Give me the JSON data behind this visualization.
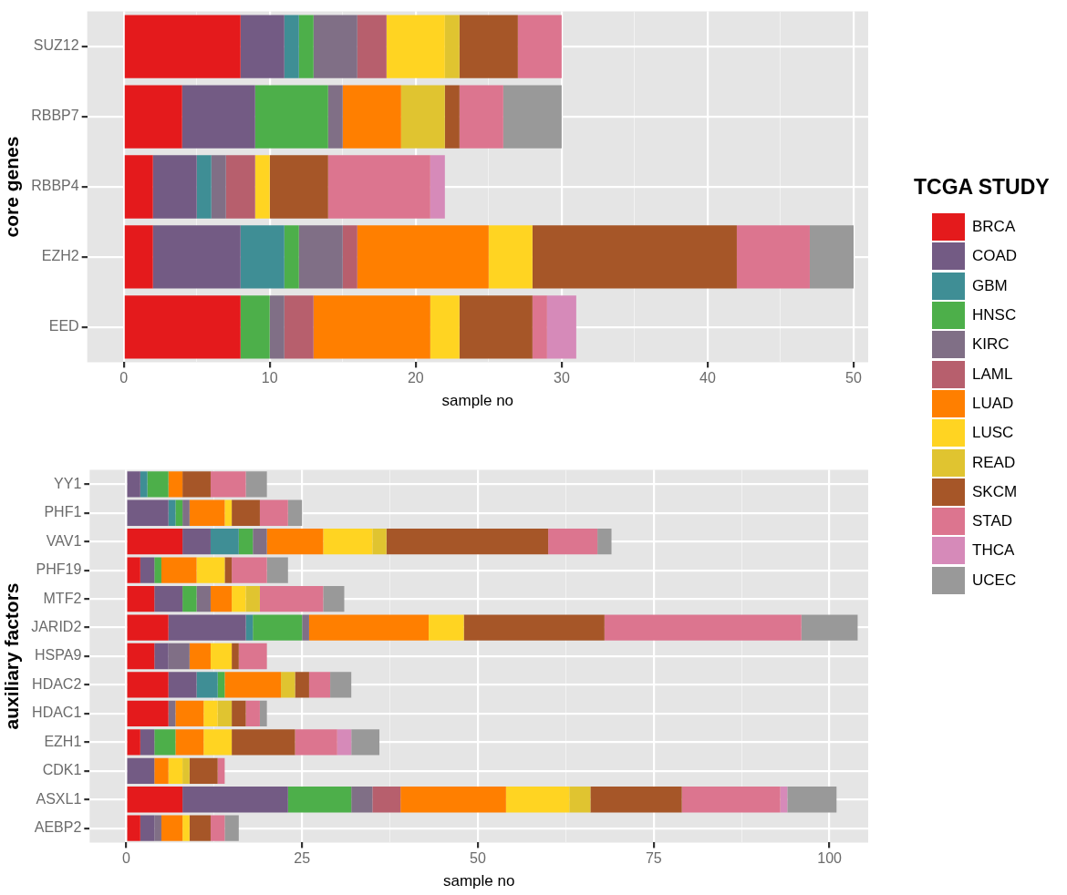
{
  "chart_data": [
    {
      "type": "bar",
      "orientation": "horizontal",
      "stacked": true,
      "ylabel": "core genes",
      "xlabel": "sample no",
      "legend_title": "TCGA STUDY",
      "legend": "right",
      "grid": true,
      "categories": [
        "SUZ12",
        "RBBP7",
        "RBBP4",
        "EZH2",
        "EED"
      ],
      "xlim": [
        -2.5,
        51
      ],
      "xticks": [
        0,
        {
          "value": 5,
          "label": null
        },
        10,
        {
          "value": 15,
          "label": null
        },
        20,
        {
          "value": 25,
          "label": null
        },
        30,
        {
          "value": 35,
          "label": null
        },
        40,
        {
          "value": 45,
          "label": null
        },
        50
      ],
      "series": [
        {
          "name": "BRCA",
          "color": "#e41a1c",
          "values": [
            8,
            4,
            2,
            2,
            8
          ]
        },
        {
          "name": "COAD",
          "color": "#735b84",
          "values": [
            3,
            5,
            3,
            6,
            0
          ]
        },
        {
          "name": "GBM",
          "color": "#3f8e95",
          "values": [
            1,
            0,
            1,
            3,
            0
          ]
        },
        {
          "name": "HNSC",
          "color": "#4daf4a",
          "values": [
            1,
            5,
            0,
            1,
            2
          ]
        },
        {
          "name": "KIRC",
          "color": "#806f86",
          "values": [
            3,
            1,
            1,
            3,
            1
          ]
        },
        {
          "name": "LAML",
          "color": "#b75f6d",
          "values": [
            2,
            0,
            2,
            1,
            2
          ]
        },
        {
          "name": "LUAD",
          "color": "#ff7f00",
          "values": [
            0,
            4,
            0,
            9,
            8
          ]
        },
        {
          "name": "LUSC",
          "color": "#ffd422",
          "values": [
            4,
            0,
            1,
            3,
            2
          ]
        },
        {
          "name": "READ",
          "color": "#e0c430",
          "values": [
            1,
            3,
            0,
            0,
            0
          ]
        },
        {
          "name": "SKCM",
          "color": "#a65628",
          "values": [
            4,
            1,
            4,
            14,
            5
          ]
        },
        {
          "name": "STAD",
          "color": "#dc758f",
          "values": [
            3,
            3,
            7,
            5,
            1
          ]
        },
        {
          "name": "THCA",
          "color": "#d68ab9",
          "values": [
            0,
            0,
            1,
            0,
            2
          ]
        },
        {
          "name": "UCEC",
          "color": "#999999",
          "values": [
            0,
            4,
            0,
            3,
            0
          ]
        }
      ]
    },
    {
      "type": "bar",
      "orientation": "horizontal",
      "stacked": true,
      "ylabel": "auxiliary factors",
      "xlabel": "sample no",
      "legend": "right",
      "grid": true,
      "categories": [
        "YY1",
        "PHF1",
        "VAV1",
        "PHF19",
        "MTF2",
        "JARID2",
        "HSPA9",
        "HDAC2",
        "HDAC1",
        "EZH1",
        "CDK1",
        "ASXL1",
        "AEBP2"
      ],
      "xlim": [
        -5.2,
        105.5
      ],
      "xticks": [
        0,
        {
          "value": 12.5,
          "label": null
        },
        25,
        {
          "value": 37.5,
          "label": null
        },
        50,
        {
          "value": 62.5,
          "label": null
        },
        75,
        {
          "value": 87.5,
          "label": null
        },
        100
      ],
      "series": [
        {
          "name": "BRCA",
          "color": "#e41a1c",
          "values": [
            0,
            0,
            8,
            2,
            4,
            6,
            4,
            6,
            6,
            2,
            0,
            8,
            2
          ]
        },
        {
          "name": "COAD",
          "color": "#735b84",
          "values": [
            2,
            6,
            4,
            2,
            4,
            11,
            2,
            4,
            0,
            2,
            4,
            15,
            2
          ]
        },
        {
          "name": "GBM",
          "color": "#3f8e95",
          "values": [
            1,
            1,
            4,
            0,
            0,
            1,
            0,
            3,
            0,
            0,
            0,
            0,
            0
          ]
        },
        {
          "name": "HNSC",
          "color": "#4daf4a",
          "values": [
            3,
            1,
            2,
            1,
            2,
            7,
            0,
            1,
            0,
            3,
            0,
            9,
            0
          ]
        },
        {
          "name": "KIRC",
          "color": "#806f86",
          "values": [
            0,
            1,
            2,
            0,
            2,
            1,
            3,
            0,
            1,
            0,
            0,
            3,
            1
          ]
        },
        {
          "name": "LAML",
          "color": "#b75f6d",
          "values": [
            0,
            0,
            0,
            0,
            0,
            0,
            0,
            0,
            0,
            0,
            0,
            4,
            0
          ]
        },
        {
          "name": "LUAD",
          "color": "#ff7f00",
          "values": [
            2,
            5,
            8,
            5,
            3,
            17,
            3,
            8,
            4,
            4,
            2,
            15,
            3
          ]
        },
        {
          "name": "LUSC",
          "color": "#ffd422",
          "values": [
            0,
            1,
            7,
            4,
            2,
            5,
            3,
            0,
            2,
            4,
            2,
            9,
            1
          ]
        },
        {
          "name": "READ",
          "color": "#e0c430",
          "values": [
            0,
            0,
            2,
            0,
            2,
            0,
            0,
            2,
            2,
            0,
            1,
            3,
            0
          ]
        },
        {
          "name": "SKCM",
          "color": "#a65628",
          "values": [
            4,
            4,
            23,
            1,
            0,
            20,
            1,
            2,
            2,
            9,
            4,
            13,
            3
          ]
        },
        {
          "name": "STAD",
          "color": "#dc758f",
          "values": [
            5,
            4,
            7,
            5,
            9,
            28,
            4,
            3,
            2,
            6,
            1,
            14,
            2
          ]
        },
        {
          "name": "THCA",
          "color": "#d68ab9",
          "values": [
            0,
            0,
            0,
            0,
            0,
            0,
            0,
            0,
            0,
            2,
            0,
            1,
            0
          ]
        },
        {
          "name": "UCEC",
          "color": "#999999",
          "values": [
            3,
            2,
            2,
            3,
            3,
            8,
            0,
            3,
            1,
            4,
            0,
            7,
            2
          ]
        }
      ]
    }
  ]
}
